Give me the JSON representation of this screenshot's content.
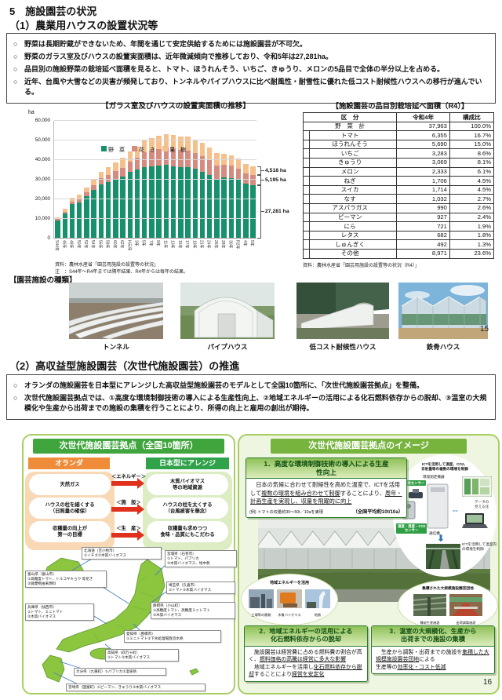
{
  "ui": {
    "bullet_marker": "○"
  },
  "page1": {
    "title": "5　施設園芸の状況",
    "subtitle": "（1）農業用ハウスの設置状況等",
    "bullets": [
      "野菜は長期貯蔵ができないため、年間を通じて安定供給するためには施設園芸が不可欠。",
      "野菜のガラス室及びハウスの設置実面積は、近年微減傾向で推移しており、令和5年は27,281ha。",
      "品目別の施設野菜の栽培延べ面積を見ると、トマト、ほうれんそう、いちご、きゅうり、メロンの5品目で全体の半分以上を占める。",
      "近年、台風や大雪などの災害が頻発しており、トンネルやパイプハウスに比べ耐風性・耐雪性に優れた低コスト耐候性ハウスへの移行が進んでいる。"
    ],
    "chart_unit": "ha",
    "chart_notes": [
      "資料：農林水産省「園芸用施設の設置等の状況」",
      "注　：S44年～R4年までは隔年結果、R4年からは毎年の結果。"
    ],
    "table": {
      "title": "【施設園芸の品目別栽培延べ面積（R4）】",
      "headers": [
        "区　分",
        "令和4年",
        "構成比"
      ],
      "rows": [
        [
          "野　菜　計",
          "37,963",
          "100.0%"
        ],
        [
          "トマト",
          "6,355",
          "16.7%"
        ],
        [
          "ほうれんそう",
          "5,690",
          "15.0%"
        ],
        [
          "いちご",
          "3,283",
          "8.6%"
        ],
        [
          "きゅうり",
          "3,069",
          "8.1%"
        ],
        [
          "メロン",
          "2,333",
          "6.1%"
        ],
        [
          "ねぎ",
          "1,706",
          "4.5%"
        ],
        [
          "スイカ",
          "1,714",
          "4.5%"
        ],
        [
          "なす",
          "1,032",
          "2.7%"
        ],
        [
          "アスパラガス",
          "990",
          "2.6%"
        ],
        [
          "ピーマン",
          "927",
          "2.4%"
        ],
        [
          "にら",
          "721",
          "1.9%"
        ],
        [
          "レタス",
          "682",
          "1.8%"
        ],
        [
          "しゅんぎく",
          "492",
          "1.3%"
        ],
        [
          "その他",
          "8,971",
          "23.6%"
        ]
      ],
      "note": "資料：農林水産省「園芸用施設の設置等の状況（R4）」"
    },
    "facility_types": {
      "title": "【園芸施設の種類】",
      "items": [
        "トンネル",
        "パイプハウス",
        "低コスト耐候性ハウス",
        "鉄骨ハウス"
      ]
    },
    "page_number": "15"
  },
  "chart_data": {
    "type": "bar",
    "stacked": true,
    "title": "【ガラス室及びハウスの設置実面積の推移】",
    "ylabel": "ha",
    "ylim": [
      0,
      60000
    ],
    "ytick_interval": 10000,
    "grid": true,
    "legend_position": "top-left-inside",
    "categories": [
      "S44年",
      "46年",
      "48年",
      "50年",
      "52年",
      "54年",
      "56年",
      "58年",
      "60年",
      "62年",
      "H元年",
      "3年",
      "5年",
      "7年",
      "9年",
      "11年",
      "13年",
      "15年",
      "17年",
      "19年",
      "21年",
      "24年",
      "26年",
      "28年",
      "30年",
      "R2年",
      "4年",
      "5年"
    ],
    "series": [
      {
        "name": "野　菜",
        "color": "#17906c",
        "values": [
          9200,
          12800,
          17500,
          18500,
          21600,
          24900,
          27800,
          28900,
          30400,
          31500,
          33900,
          35100,
          36600,
          36700,
          37100,
          37500,
          37000,
          36600,
          36300,
          35500,
          34000,
          32600,
          30600,
          31300,
          31000,
          30000,
          28000,
          27281
        ]
      },
      {
        "name": "花　き",
        "color": "#d68b80",
        "values": [
          800,
          1000,
          1400,
          1600,
          1900,
          2400,
          2900,
          3600,
          4000,
          4700,
          5400,
          6200,
          7300,
          8200,
          8700,
          8900,
          9000,
          8700,
          8700,
          8300,
          7900,
          7300,
          6800,
          6400,
          6100,
          5800,
          5400,
          5195
        ]
      },
      {
        "name": "果　樹",
        "color": "#f5c08c",
        "values": [
          1000,
          1300,
          1900,
          2200,
          2600,
          3100,
          3400,
          4000,
          4300,
          4900,
          5300,
          5700,
          6100,
          6500,
          6700,
          6800,
          6900,
          6800,
          6900,
          6800,
          7100,
          6600,
          6100,
          5700,
          5200,
          4900,
          4600,
          4518
        ]
      }
    ],
    "end_labels": [
      "4,518 ha",
      "5,195 ha",
      "27,281 ha"
    ]
  },
  "page2": {
    "title": "（2）高収益型施設園芸（次世代施設園芸）の推進",
    "bullets": [
      "オランダの施設園芸を日本型にアレンジした高収益型施設園芸のモデルとして全国10箇所に、「次世代施設園芸拠点」を整備。",
      "次世代施設園芸拠点では、①高度な環境制御技術の導入による生産性向上、②地域エネルギーの活用による化石燃料依存からの脱却、③温室の大規模化や生産から出荷までの施設の集積を行うことにより、所得の向上と雇用の創出が期待。"
    ],
    "left_panel": {
      "title": "次世代施設園芸拠点（全国10箇所）",
      "netherlands_label": "オランダ",
      "japan_label": "日本型にアレンジ",
      "rows": [
        {
          "category": "＜エネルギー＞",
          "nl": "天然ガス",
          "jp": "木質バイオマス\n等の地域資源"
        },
        {
          "category": "＜施　設＞",
          "nl": "ハウスの柱を細くする\n（日照量の確保）",
          "jp": "ハウスの柱を太くする\n（台風被害を懸念）"
        },
        {
          "category": "＜生　産＞",
          "nl": "収穫量の向上が\n第一の目標",
          "jp": "収穫量も求めつつ\n食味・品質にもこだわる"
        }
      ],
      "map_sites": [
        "北海道（苫小牧市）\n①イチゴ②木質バイオマス",
        "宮城県（石巻市）\n①トマト、パプリカ\n②木質バイオマス、地中熱",
        "埼玉県（久喜市）\n①トマト②木質バイオマス",
        "富山県（富山市）\n①高糖度トマト、トルコギキョウ 等花き\n②廃棄物由来燃料",
        "静岡県（小山町）\n①高糖度トマト、高糖度ミニトマト\n②木質バイオマス",
        "兵庫県（加西市）\n①トマト、ミニトマト\n②木質バイオマス",
        "愛知県（豊橋市）\n①ミニトマト②下水処理場放流水熱",
        "高知県（四万十町）\n①トマト②木質バイオマス",
        "大分県（九重町）①パプリカ②温泉熱",
        "宮崎県（国富町）①ピーマン、きゅうり②木質バイオマス"
      ]
    },
    "right_panel": {
      "title": "次世代施設園芸拠点のイメージ",
      "box1": {
        "title": "1．高度な環境制御技術の導入による生産\n性向上",
        "body": [
          {
            "t": "　日本の気候に合わせて耐候性を高めた温室で、ICTを活用して",
            "u": false
          },
          {
            "t": "複数の環境を組み合わせて制御",
            "u": true
          },
          {
            "t": "することにより、",
            "u": false
          },
          {
            "t": "周年・計画生産を実現し、収量を飛躍的に向上",
            "u": true
          }
        ],
        "example": "(例) トマトの収量約30～50t／10aを実現",
        "average": "（全国平均約10t/10a）"
      },
      "ict": {
        "caption": "ICTを活用して温度、CO2、\n日射量等の複数の環境を制御",
        "device": "環境測定機器",
        "sensor1": "日射センサー",
        "sensor2": "温度・湿度・CO2\nセンサー",
        "comm": "通信機",
        "visualize": "データの\n見える化",
        "control": "ICTを活用して温室内\nの環境を制御"
      },
      "bubble_energy": {
        "title": "地域エネルギーを活用",
        "photos": [
          "工場等の廃熱",
          "木質バイオマス",
          "地熱"
        ]
      },
      "bubble_cluster": {
        "title": "集積された大規模施設園芸団地",
        "photos": [
          "種苗生産施設",
          "出荷調製施設"
        ]
      },
      "box2": {
        "title": "2．地域エネルギーの活用による\n化石燃料依存からの脱却",
        "body": [
          {
            "t": "　施設園芸は経営費に占める燃料費の割合が高く、",
            "u": false
          },
          {
            "t": "燃料価格の高騰は経営に多大な影響",
            "u": true
          },
          {
            "t": "\n　地域エネルギーを活用し",
            "u": false
          },
          {
            "t": "化石燃料依存から脱却",
            "u": true
          },
          {
            "t": "することにより",
            "u": false
          },
          {
            "t": "経営を安定化",
            "u": true
          }
        ]
      },
      "box3": {
        "title": "3．温室の大規模化、生産から\n出荷までの施設の集積",
        "body": [
          {
            "t": "　生産から調製・出荷までの施設を",
            "u": false
          },
          {
            "t": "集積した大規模施設園芸団地",
            "u": true
          },
          {
            "t": "による\n生産等の",
            "u": false
          },
          {
            "t": "効率化・コスト低減",
            "u": true
          }
        ]
      }
    },
    "page_number": "16"
  }
}
